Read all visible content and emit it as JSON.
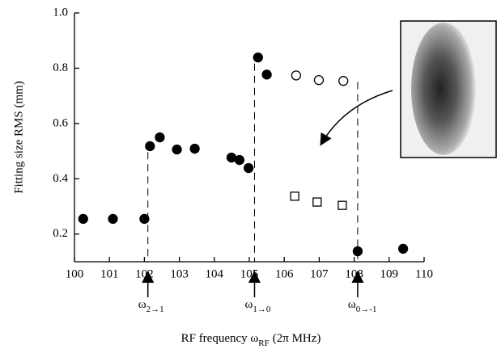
{
  "chart_data": {
    "type": "scatter",
    "y_label": "Fitting size RMS (mm)",
    "x_label": {
      "text": "RF frequency ω",
      "subscript": "RF",
      "unit": "(2π MHz)"
    },
    "xlim": [
      100,
      110
    ],
    "xticks": [
      100,
      101,
      102,
      103,
      104,
      105,
      106,
      107,
      108,
      109,
      110
    ],
    "ylim": [
      0.1,
      1.0
    ],
    "yticks": [
      0.2,
      0.4,
      0.6,
      0.8,
      {
        "value": 1,
        "label": "1.0"
      }
    ],
    "series": [
      {
        "marker": "filled-circle",
        "color": "#000",
        "x": [
          100.25,
          101.1,
          102.0,
          102.16,
          102.44,
          102.93,
          103.44,
          104.49,
          104.72,
          104.98,
          105.25,
          105.5,
          108.1,
          109.4
        ],
        "values": [
          0.255,
          0.255,
          0.255,
          0.518,
          0.55,
          0.506,
          0.509,
          0.477,
          0.468,
          0.439,
          0.839,
          0.777,
          0.138,
          0.147
        ]
      },
      {
        "marker": "open-circle",
        "color": "#000",
        "x": [
          106.34,
          106.99,
          107.69
        ],
        "values": [
          0.774,
          0.757,
          0.754
        ]
      },
      {
        "marker": "open-square",
        "color": "#000",
        "x": [
          106.3,
          106.94,
          107.66
        ],
        "values": [
          0.337,
          0.316,
          0.304
        ]
      }
    ],
    "transitions": [
      {
        "x": 102.1,
        "y": 0.52,
        "symbol": "ω",
        "subscript": "2→1"
      },
      {
        "x": 105.15,
        "y": 0.84,
        "symbol": "ω",
        "subscript": "1→0"
      },
      {
        "x": 108.1,
        "y": 0.75,
        "symbol": "ω",
        "subscript": "0→-1"
      }
    ]
  }
}
